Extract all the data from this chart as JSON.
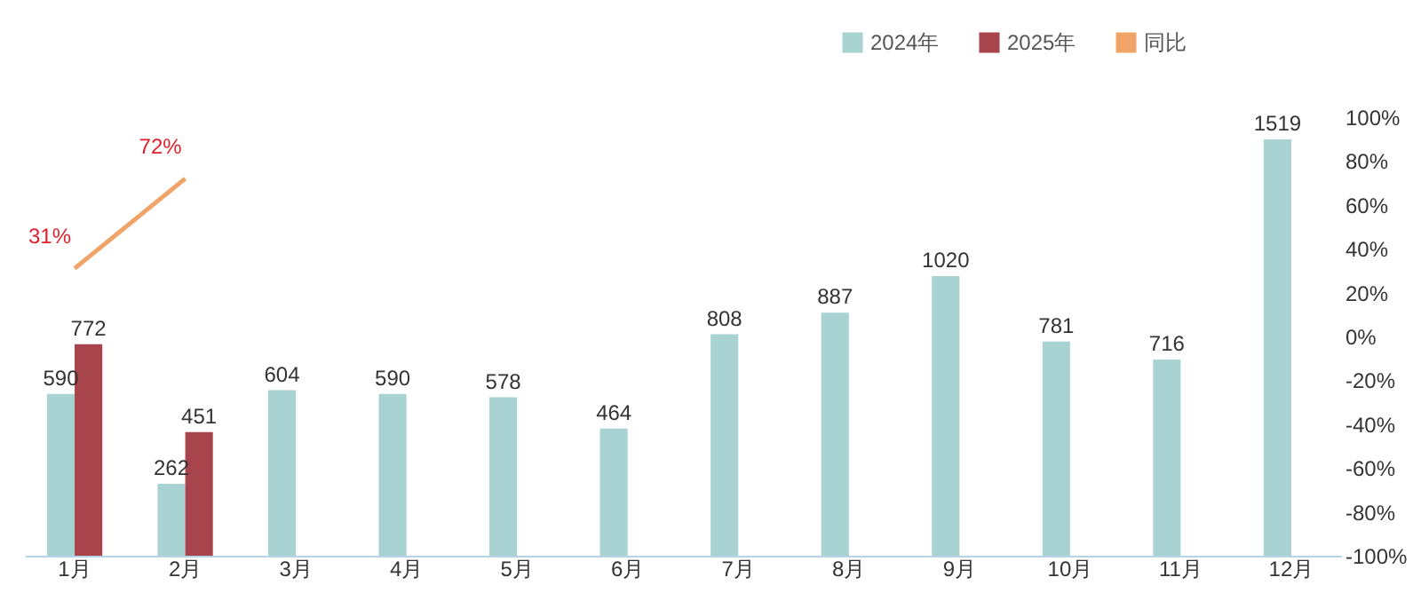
{
  "chart_data": {
    "type": "bar",
    "categories": [
      "1月",
      "2月",
      "3月",
      "4月",
      "5月",
      "6月",
      "7月",
      "8月",
      "9月",
      "10月",
      "11月",
      "12月"
    ],
    "series": [
      {
        "name": "2024年",
        "color": "#a9d2d2",
        "values": [
          590,
          262,
          604,
          590,
          578,
          464,
          808,
          887,
          1020,
          781,
          716,
          1519
        ]
      },
      {
        "name": "2025年",
        "color": "#a8444c",
        "values": [
          772,
          451,
          null,
          null,
          null,
          null,
          null,
          null,
          null,
          null,
          null,
          null
        ]
      },
      {
        "name": "同比",
        "type": "line",
        "axis": "y2",
        "color": "#f0a46a",
        "values": [
          31,
          72,
          null,
          null,
          null,
          null,
          null,
          null,
          null,
          null,
          null,
          null
        ],
        "value_labels": [
          "31%",
          "72%",
          null,
          null,
          null,
          null,
          null,
          null,
          null,
          null,
          null,
          null
        ]
      }
    ],
    "data_labels": true,
    "y2lim": [
      -100,
      100
    ],
    "y2ticks": [
      {
        "value": -100,
        "label": "-100%"
      },
      {
        "value": -80,
        "label": "-80%"
      },
      {
        "value": -60,
        "label": "-60%"
      },
      {
        "value": -40,
        "label": "-40%"
      },
      {
        "value": -20,
        "label": "-20%"
      },
      {
        "value": 0,
        "label": "0%"
      },
      {
        "value": 20,
        "label": "20%"
      },
      {
        "value": 40,
        "label": "40%"
      },
      {
        "value": 60,
        "label": "60%"
      },
      {
        "value": 80,
        "label": "80%"
      },
      {
        "value": 100,
        "label": "100%"
      }
    ],
    "legend": "top right"
  }
}
